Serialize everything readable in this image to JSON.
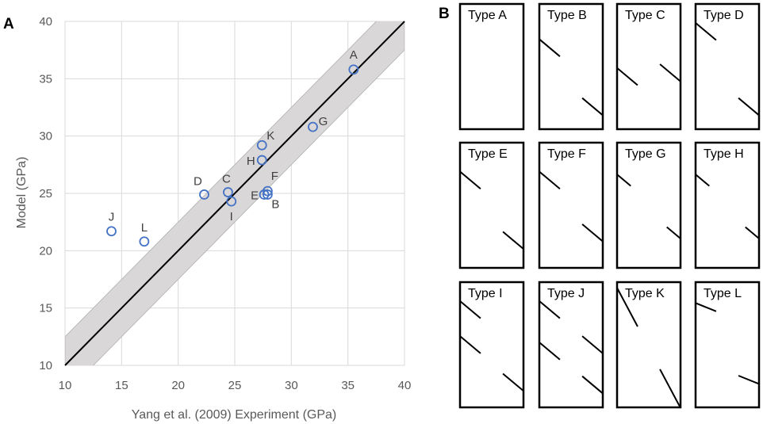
{
  "panel_a_label": "A",
  "panel_b_label": "B",
  "chart_data": {
    "type": "scatter",
    "xlabel": "Yang et al. (2009) Experiment (GPa)",
    "ylabel": "Model (GPa)",
    "xlim": [
      10,
      40
    ],
    "ylim": [
      10,
      40
    ],
    "xticks": [
      10,
      15,
      20,
      25,
      30,
      35,
      40
    ],
    "yticks": [
      10,
      15,
      20,
      25,
      30,
      35,
      40
    ],
    "grid": true,
    "band_halfwidth": 2.5,
    "reference_line": "y = x",
    "colors": {
      "marker": "#4472c4",
      "band": "#d9d7d7",
      "line": "#000000",
      "grid": "#d9d9d9"
    },
    "points": [
      {
        "label": "A",
        "x": 35.5,
        "y": 35.8
      },
      {
        "label": "B",
        "x": 27.9,
        "y": 24.9
      },
      {
        "label": "C",
        "x": 24.4,
        "y": 25.1
      },
      {
        "label": "D",
        "x": 22.3,
        "y": 24.9
      },
      {
        "label": "E",
        "x": 27.6,
        "y": 24.9
      },
      {
        "label": "F",
        "x": 27.9,
        "y": 25.2
      },
      {
        "label": "G",
        "x": 31.9,
        "y": 30.8
      },
      {
        "label": "H",
        "x": 27.4,
        "y": 27.9
      },
      {
        "label": "I",
        "x": 24.7,
        "y": 24.3
      },
      {
        "label": "J",
        "x": 14.1,
        "y": 21.7
      },
      {
        "label": "K",
        "x": 27.4,
        "y": 29.2
      },
      {
        "label": "L",
        "x": 17.0,
        "y": 20.8
      }
    ]
  },
  "crack_types": [
    {
      "name": "Type A",
      "cracks": []
    },
    {
      "name": "Type B",
      "cracks": [
        {
          "edge": "left",
          "pos": 0.35,
          "angle": 40,
          "len": 0.45
        },
        {
          "edge": "right",
          "pos": 0.82,
          "angle": 40,
          "len": 0.45
        }
      ]
    },
    {
      "name": "Type C",
      "cracks": [
        {
          "edge": "left",
          "pos": 0.58,
          "angle": 40,
          "len": 0.45
        },
        {
          "edge": "right",
          "pos": 0.55,
          "angle": 40,
          "len": 0.45
        }
      ]
    },
    {
      "name": "Type D",
      "cracks": [
        {
          "edge": "left",
          "pos": 0.22,
          "angle": 40,
          "len": 0.45
        },
        {
          "edge": "right",
          "pos": 0.82,
          "angle": 40,
          "len": 0.45
        }
      ]
    },
    {
      "name": "Type E",
      "cracks": [
        {
          "edge": "left",
          "pos": 0.3,
          "angle": 40,
          "len": 0.45
        },
        {
          "edge": "right",
          "pos": 0.78,
          "angle": 40,
          "len": 0.45
        }
      ]
    },
    {
      "name": "Type F",
      "cracks": [
        {
          "edge": "left",
          "pos": 0.3,
          "angle": 40,
          "len": 0.45
        },
        {
          "edge": "right",
          "pos": 0.72,
          "angle": 40,
          "len": 0.45
        }
      ]
    },
    {
      "name": "Type G",
      "cracks": [
        {
          "edge": "left",
          "pos": 0.3,
          "angle": 40,
          "len": 0.3
        },
        {
          "edge": "right",
          "pos": 0.72,
          "angle": 40,
          "len": 0.3
        }
      ]
    },
    {
      "name": "Type H",
      "cracks": [
        {
          "edge": "left",
          "pos": 0.3,
          "angle": 40,
          "len": 0.3
        },
        {
          "edge": "right",
          "pos": 0.72,
          "angle": 40,
          "len": 0.3
        }
      ]
    },
    {
      "name": "Type I",
      "cracks": [
        {
          "edge": "left",
          "pos": 0.22,
          "angle": 40,
          "len": 0.45
        },
        {
          "edge": "left",
          "pos": 0.5,
          "angle": 40,
          "len": 0.45
        },
        {
          "edge": "right",
          "pos": 0.8,
          "angle": 40,
          "len": 0.45
        }
      ]
    },
    {
      "name": "Type J",
      "cracks": [
        {
          "edge": "left",
          "pos": 0.22,
          "angle": 40,
          "len": 0.45
        },
        {
          "edge": "left",
          "pos": 0.55,
          "angle": 40,
          "len": 0.45
        },
        {
          "edge": "right",
          "pos": 0.5,
          "angle": 40,
          "len": 0.45
        },
        {
          "edge": "right",
          "pos": 0.82,
          "angle": 40,
          "len": 0.45
        }
      ]
    },
    {
      "name": "Type K",
      "cracks": [
        {
          "edge": "left",
          "pos": 0.2,
          "angle": 62,
          "len": 0.45
        },
        {
          "edge": "right",
          "pos": 0.85,
          "angle": 62,
          "len": 0.45
        }
      ]
    },
    {
      "name": "Type L",
      "cracks": [
        {
          "edge": "left",
          "pos": 0.2,
          "angle": 22,
          "len": 0.45
        },
        {
          "edge": "right",
          "pos": 0.78,
          "angle": 22,
          "len": 0.45
        }
      ]
    }
  ]
}
